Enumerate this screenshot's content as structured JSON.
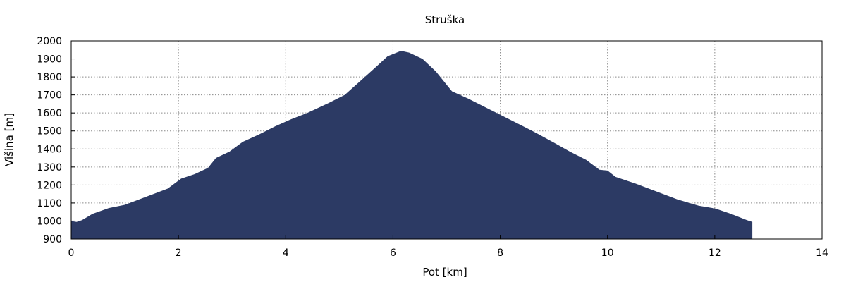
{
  "chart_data": {
    "type": "area",
    "title": "Struška",
    "xlabel": "Pot [km]",
    "ylabel": "Višina [m]",
    "xlim": [
      0,
      14
    ],
    "ylim": [
      900,
      2000
    ],
    "x_ticks": [
      0,
      2,
      4,
      6,
      8,
      10,
      12,
      14
    ],
    "y_ticks": [
      900,
      1000,
      1100,
      1200,
      1300,
      1400,
      1500,
      1600,
      1700,
      1800,
      1900,
      2000
    ],
    "grid": true,
    "legend": "none",
    "fill_color": "#2c3a64",
    "series": [
      {
        "x": [
          0,
          0.1,
          0.2,
          0.4,
          0.7,
          1.0,
          1.4,
          1.8,
          2.05,
          2.3,
          2.55,
          2.7,
          2.95,
          3.2,
          3.5,
          3.8,
          4.1,
          4.4,
          4.8,
          5.1,
          5.4,
          5.7,
          5.9,
          6.15,
          6.3,
          6.55,
          6.8,
          7.1,
          7.4,
          7.8,
          8.2,
          8.6,
          9.0,
          9.3,
          9.6,
          9.85,
          10.0,
          10.15,
          10.5,
          10.9,
          11.3,
          11.7,
          12.0,
          12.3,
          12.6,
          12.7
        ],
        "y": [
          1000,
          995,
          1005,
          1040,
          1072,
          1090,
          1135,
          1180,
          1235,
          1260,
          1295,
          1350,
          1385,
          1440,
          1480,
          1525,
          1565,
          1600,
          1655,
          1700,
          1780,
          1860,
          1915,
          1945,
          1935,
          1900,
          1830,
          1720,
          1680,
          1620,
          1560,
          1500,
          1435,
          1385,
          1340,
          1285,
          1280,
          1245,
          1210,
          1165,
          1120,
          1085,
          1070,
          1040,
          1005,
          995
        ]
      }
    ]
  }
}
